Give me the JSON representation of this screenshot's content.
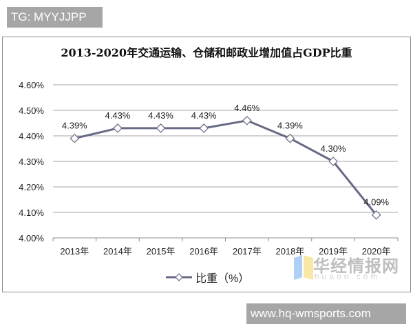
{
  "badges": {
    "tag": "TG: MYYJJPP",
    "url": "www.hq-wmsports.com"
  },
  "watermark": {
    "name": "华经情报网",
    "domain": "huaon.com"
  },
  "colors": {
    "line": "#676a85",
    "grid": "#a6a6a6",
    "marker_fill": "#ffffff",
    "badge_bg": "#a6a6a6"
  },
  "chart_data": {
    "type": "line",
    "title": "2013-2020年交通运输、仓储和邮政业增加值占GDP比重",
    "xlabel": "",
    "ylabel": "",
    "categories": [
      "2013年",
      "2014年",
      "2015年",
      "2016年",
      "2017年",
      "2018年",
      "2019年",
      "2020年"
    ],
    "series": [
      {
        "name": "比重（%）",
        "values": [
          4.39,
          4.43,
          4.43,
          4.43,
          4.46,
          4.39,
          4.3,
          4.09
        ],
        "labels": [
          "4.39%",
          "4.43%",
          "4.43%",
          "4.43%",
          "4.46%",
          "4.39%",
          "4.30%",
          "4.09%"
        ],
        "marker": "diamond-open"
      }
    ],
    "ylim": [
      4.0,
      4.6
    ],
    "yticks": [
      "4.00%",
      "4.10%",
      "4.20%",
      "4.30%",
      "4.40%",
      "4.50%",
      "4.60%"
    ],
    "grid": true,
    "legend_position": "bottom"
  }
}
